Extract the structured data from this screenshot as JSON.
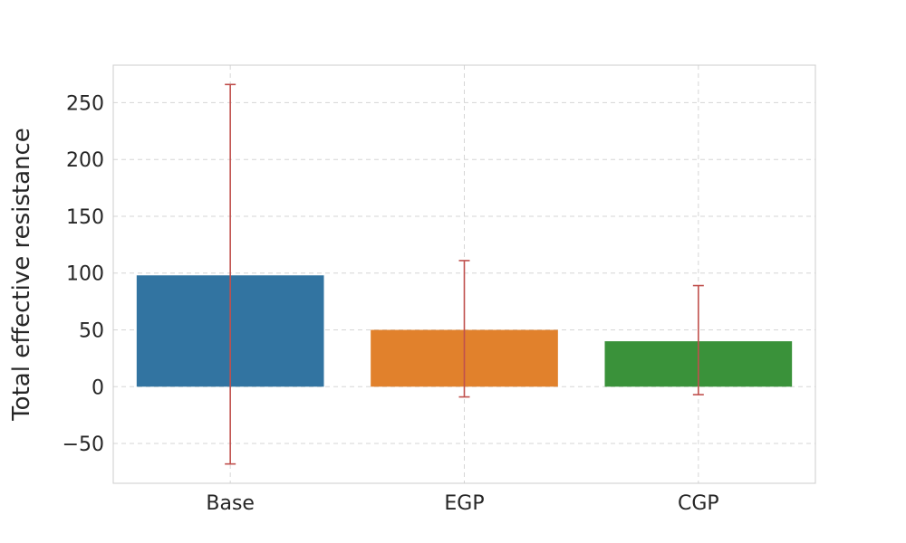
{
  "chart_data": {
    "type": "bar",
    "categories": [
      "Base",
      "EGP",
      "CGP"
    ],
    "values": [
      98,
      50,
      40
    ],
    "error_low": [
      -68,
      -9,
      -7
    ],
    "error_high": [
      266,
      111,
      89
    ],
    "colors": [
      "#3274a1",
      "#e1812c",
      "#3a923a"
    ],
    "error_color": "#c0504d",
    "title": "",
    "xlabel": "",
    "ylabel": "Total effective resistance",
    "ylim": [
      -85,
      283
    ],
    "yticks": [
      -50,
      0,
      50,
      100,
      150,
      200,
      250
    ],
    "ytick_labels": [
      "−50",
      "0",
      "50",
      "100",
      "150",
      "200",
      "250"
    ],
    "grid": true
  }
}
